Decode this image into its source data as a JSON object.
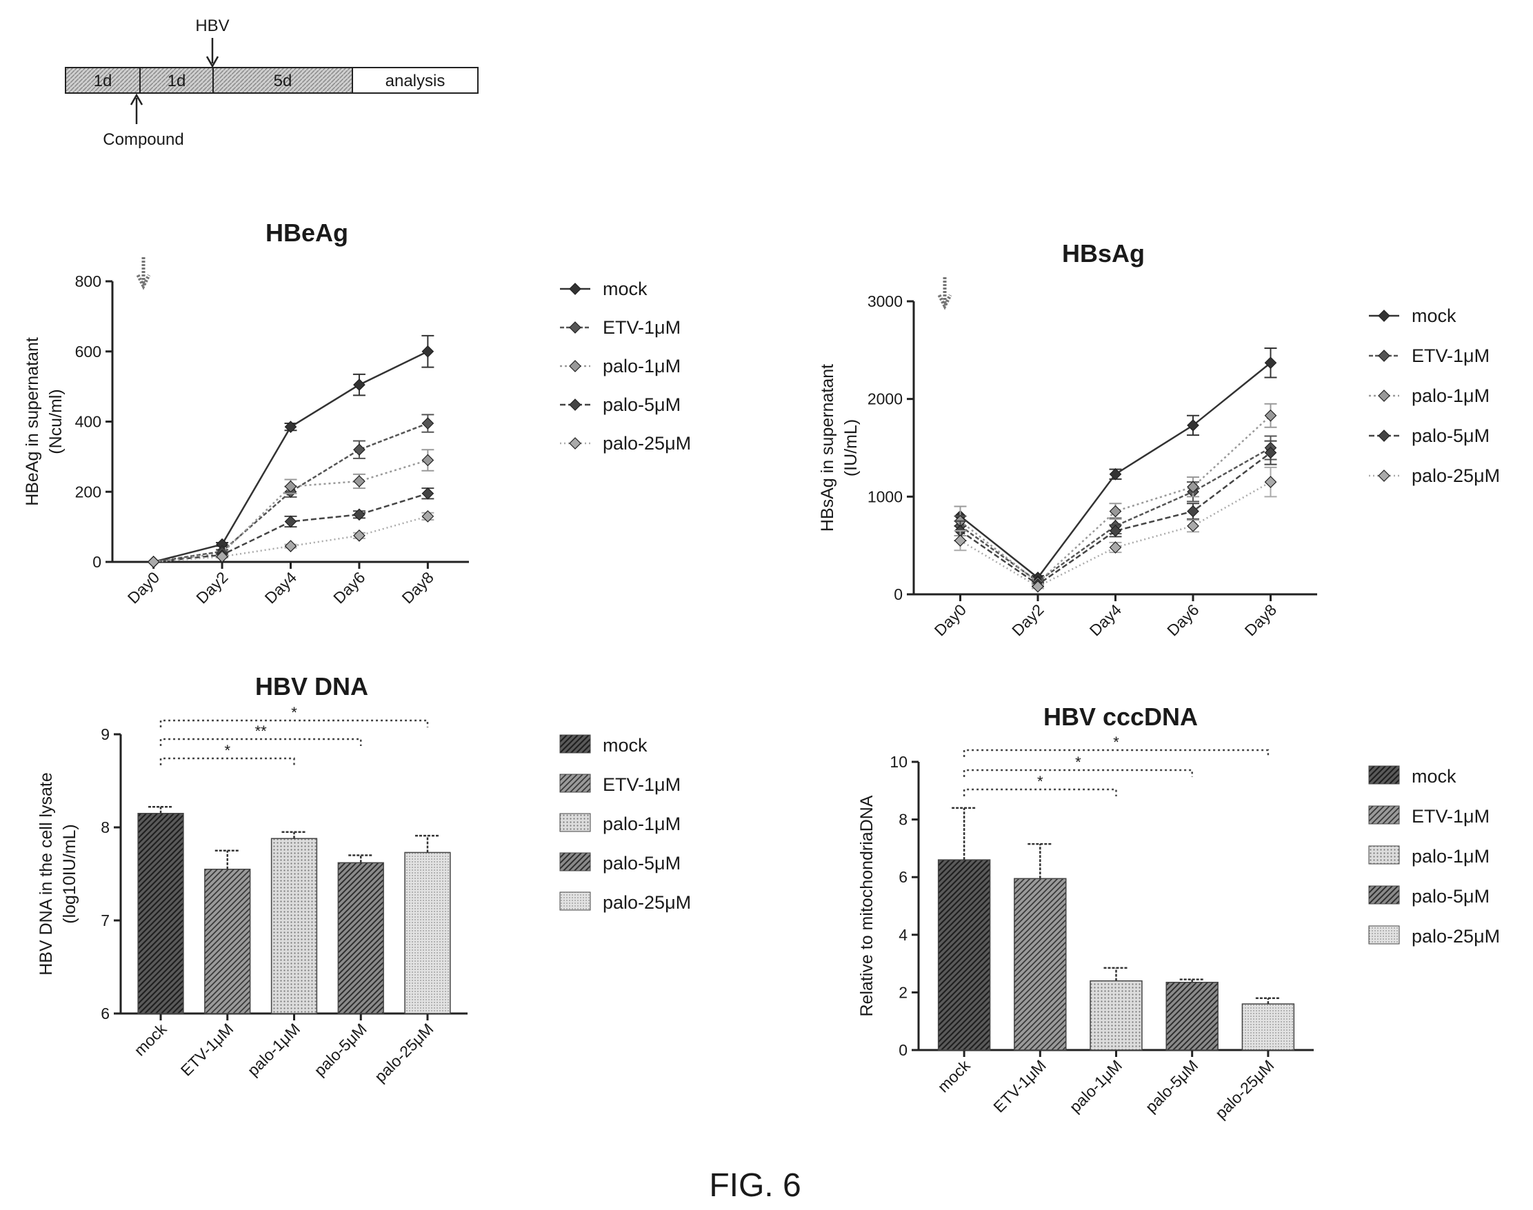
{
  "figure_caption": "FIG. 6",
  "timeline": {
    "segments": [
      "1d",
      "1d",
      "5d",
      "analysis"
    ],
    "hbv_label": "HBV",
    "compound_label": "Compound"
  },
  "colors": {
    "mock": "#333333",
    "ETV-1μM": "#555555",
    "palo-1μM": "#999999",
    "palo-5μM": "#444444",
    "palo-25μM": "#aaaaaa"
  },
  "chart_data": [
    {
      "type": "line",
      "title": "HBeAg",
      "xlabel": "",
      "ylabel_lines": [
        "HBeAg in supernatant",
        "(Ncu/ml)"
      ],
      "categories": [
        "Day0",
        "Day2",
        "Day4",
        "Day6",
        "Day8"
      ],
      "ylim": [
        0,
        800
      ],
      "yticks": [
        "0",
        "200",
        "400",
        "600",
        "800"
      ],
      "legend_position": "right",
      "series": [
        {
          "name": "mock",
          "values": [
            0,
            50,
            385,
            505,
            600
          ],
          "err": [
            0,
            5,
            10,
            30,
            45
          ]
        },
        {
          "name": "ETV-1μM",
          "values": [
            0,
            30,
            200,
            320,
            395
          ],
          "err": [
            0,
            5,
            15,
            25,
            25
          ]
        },
        {
          "name": "palo-1μM",
          "values": [
            0,
            25,
            215,
            230,
            290
          ],
          "err": [
            0,
            5,
            20,
            20,
            30
          ]
        },
        {
          "name": "palo-5μM",
          "values": [
            0,
            20,
            115,
            135,
            195
          ],
          "err": [
            0,
            5,
            15,
            10,
            15
          ]
        },
        {
          "name": "palo-25μM",
          "values": [
            0,
            15,
            45,
            75,
            130
          ],
          "err": [
            0,
            3,
            5,
            8,
            10
          ]
        }
      ]
    },
    {
      "type": "line",
      "title": "HBsAg",
      "xlabel": "",
      "ylabel_lines": [
        "HBsAg in supernatant",
        "(IU/mL)"
      ],
      "categories": [
        "Day0",
        "Day2",
        "Day4",
        "Day6",
        "Day8"
      ],
      "ylim": [
        0,
        3000
      ],
      "yticks": [
        "0",
        "1000",
        "2000",
        "3000"
      ],
      "legend_position": "right",
      "series": [
        {
          "name": "mock",
          "values": [
            800,
            170,
            1230,
            1730,
            2370
          ],
          "err": [
            100,
            20,
            50,
            100,
            150
          ]
        },
        {
          "name": "ETV-1μM",
          "values": [
            700,
            130,
            700,
            1050,
            1500
          ],
          "err": [
            100,
            20,
            80,
            100,
            120
          ]
        },
        {
          "name": "palo-1μM",
          "values": [
            750,
            120,
            850,
            1100,
            1830
          ],
          "err": [
            150,
            20,
            80,
            100,
            120
          ]
        },
        {
          "name": "palo-5μM",
          "values": [
            650,
            100,
            650,
            850,
            1450
          ],
          "err": [
            100,
            20,
            60,
            80,
            120
          ]
        },
        {
          "name": "palo-25μM",
          "values": [
            550,
            80,
            480,
            700,
            1150
          ],
          "err": [
            100,
            20,
            50,
            60,
            150
          ]
        }
      ]
    },
    {
      "type": "bar",
      "title": "HBV DNA",
      "xlabel": "",
      "ylabel_lines": [
        "HBV DNA in the cell lysate",
        "(log10IU/mL)"
      ],
      "categories": [
        "mock",
        "ETV-1μM",
        "palo-1μM",
        "palo-5μM",
        "palo-25μM"
      ],
      "values": [
        8.15,
        7.55,
        7.88,
        7.62,
        7.73
      ],
      "err": [
        0.07,
        0.2,
        0.07,
        0.08,
        0.18
      ],
      "ylim": [
        6,
        9
      ],
      "yticks": [
        "6",
        "7",
        "8",
        "9"
      ],
      "legend_position": "right",
      "significance": [
        {
          "from": 0,
          "to": 2,
          "label": "*"
        },
        {
          "from": 0,
          "to": 3,
          "label": "**"
        },
        {
          "from": 0,
          "to": 4,
          "label": "*"
        }
      ]
    },
    {
      "type": "bar",
      "title": "HBV cccDNA",
      "xlabel": "",
      "ylabel_lines": [
        "Relative to mitochondriaDNA"
      ],
      "categories": [
        "mock",
        "ETV-1μM",
        "palo-1μM",
        "palo-5μM",
        "palo-25μM"
      ],
      "values": [
        6.6,
        5.95,
        2.4,
        2.35,
        1.6
      ],
      "err": [
        1.8,
        1.2,
        0.45,
        0.1,
        0.2
      ],
      "ylim": [
        0,
        10
      ],
      "yticks": [
        "0",
        "2",
        "4",
        "6",
        "8",
        "10"
      ],
      "legend_position": "right",
      "significance": [
        {
          "from": 0,
          "to": 2,
          "label": "*"
        },
        {
          "from": 0,
          "to": 3,
          "label": "*"
        },
        {
          "from": 0,
          "to": 4,
          "label": "*"
        }
      ]
    }
  ]
}
